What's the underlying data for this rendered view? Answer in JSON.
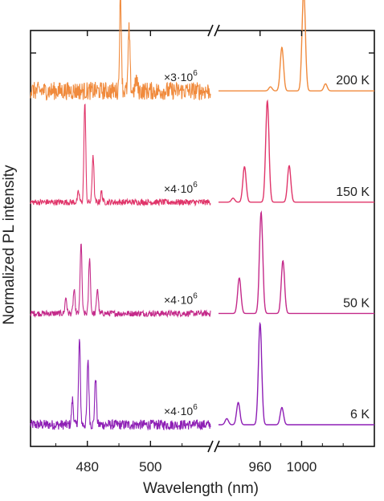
{
  "chart_data": {
    "type": "line",
    "xlabel": "Wavelength (nm)",
    "ylabel": "Normalized PL intensity",
    "broken_x_axis": true,
    "panels": [
      {
        "name": "left",
        "xlim": [
          462,
          519
        ],
        "ticks": [
          {
            "value": 480,
            "label": "480"
          },
          {
            "value": 500,
            "label": "500"
          }
        ]
      },
      {
        "name": "right",
        "xlim": [
          920,
          1070
        ],
        "ticks": [
          {
            "value": 960,
            "label": "960"
          },
          {
            "value": 1000,
            "label": "1000"
          }
        ]
      }
    ],
    "series": [
      {
        "name": "6 K",
        "color": "#8e1fb5",
        "offset": 0,
        "scale_factor": "×4·10⁶",
        "scale_main": "×4·10",
        "scale_exp": "6",
        "left_noise": 0.05,
        "left_peaks": [
          {
            "x": 475.3,
            "h": 0.25
          },
          {
            "x": 477.5,
            "h": 0.85
          },
          {
            "x": 480.2,
            "h": 0.65
          },
          {
            "x": 482.6,
            "h": 0.47
          }
        ],
        "right_peaks": [
          {
            "x": 928,
            "h": 0.06
          },
          {
            "x": 939,
            "h": 0.22
          },
          {
            "x": 960,
            "h": 1.0
          },
          {
            "x": 981,
            "h": 0.17
          }
        ]
      },
      {
        "name": "50 K",
        "color": "#c42a8a",
        "offset": 1.1,
        "scale_factor": "×4·10⁶",
        "scale_main": "×4·10",
        "scale_exp": "6",
        "left_noise": 0.03,
        "left_peaks": [
          {
            "x": 473.2,
            "h": 0.16
          },
          {
            "x": 475.8,
            "h": 0.23
          },
          {
            "x": 478.0,
            "h": 0.7
          },
          {
            "x": 480.7,
            "h": 0.56
          },
          {
            "x": 483.2,
            "h": 0.25
          }
        ],
        "right_peaks": [
          {
            "x": 940,
            "h": 0.35
          },
          {
            "x": 961,
            "h": 1.0
          },
          {
            "x": 982,
            "h": 0.52
          }
        ]
      },
      {
        "name": "150 K",
        "color": "#e0356a",
        "offset": 2.2,
        "scale_factor": "×4·10⁶",
        "scale_main": "×4·10",
        "scale_exp": "6",
        "left_noise": 0.03,
        "left_peaks": [
          {
            "x": 477.2,
            "h": 0.1
          },
          {
            "x": 479.2,
            "h": 1.0
          },
          {
            "x": 481.8,
            "h": 0.47
          },
          {
            "x": 484.5,
            "h": 0.1
          }
        ],
        "right_peaks": [
          {
            "x": 934,
            "h": 0.04
          },
          {
            "x": 945,
            "h": 0.35
          },
          {
            "x": 967,
            "h": 1.0
          },
          {
            "x": 988,
            "h": 0.36
          }
        ]
      },
      {
        "name": "200 K",
        "color": "#f08a3c",
        "offset": 3.3,
        "scale_factor": "×3·10⁶",
        "scale_main": "×3·10",
        "scale_exp": "6",
        "left_noise": 0.09,
        "left_peaks": [
          {
            "x": 490.5,
            "h": 0.95
          },
          {
            "x": 493.2,
            "h": 0.6
          },
          {
            "x": 495.5,
            "h": 0.12
          }
        ],
        "right_peaks": [
          {
            "x": 970,
            "h": 0.04
          },
          {
            "x": 981,
            "h": 0.43
          },
          {
            "x": 1002,
            "h": 1.0
          },
          {
            "x": 1023,
            "h": 0.07
          }
        ]
      }
    ]
  }
}
